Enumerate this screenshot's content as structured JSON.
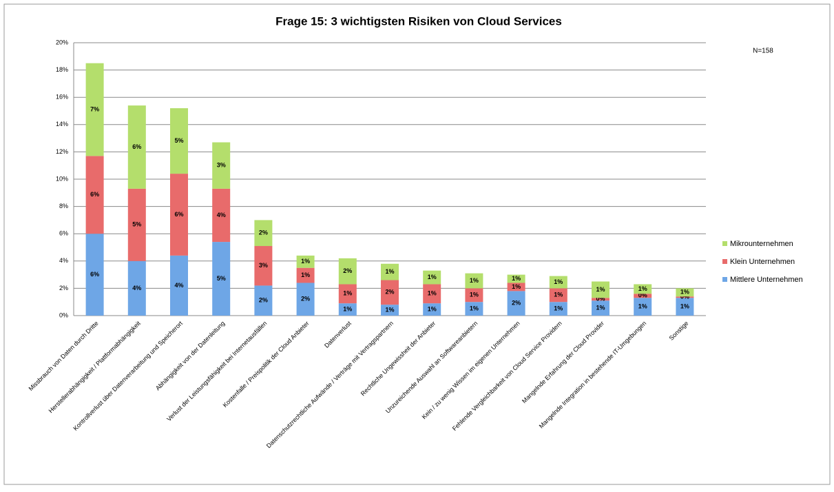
{
  "chart_data": {
    "type": "stacked_bar",
    "title": "Frage 15: 3 wichtigsten Risiken von Cloud Services",
    "annotation": "N=158",
    "categories": [
      "Missbrauch von Daten durch Dritte",
      "Herstellerabhängigkeit / Plattformabhängigkeit",
      "Kontrollverlust über Datenverarbeitung und Speicherort",
      "Abhängigkeit von der Datenleitung",
      "Verlust der Leistungsfähigkeit bei Internetausfällen",
      "Kostenfalle / Preispolitik der Cloud Anbieter",
      "Datenverlust",
      "Datenschutzrechtliche Aufwände / Verträge mit Vertragspartnern",
      "Rechtliche Ungewissheit der Anbieter",
      "Unzureichende Auswahl an Softwareanbietern",
      "Kein / zu wenig Wissen im eigenen Unternehmen",
      "Fehlende Vergleichbarkeit von Cloud Service Providern",
      "Mangelnde Erfahrung der Cloud Provider",
      "Mangelnde Integration in bestehende IT-Umgebungen",
      "Sonstige"
    ],
    "series": [
      {
        "name": "Mittlere Unternehmen",
        "color": "#6ea6e6",
        "values": [
          6.0,
          4.0,
          4.4,
          5.4,
          2.2,
          2.4,
          0.9,
          0.8,
          0.9,
          1.0,
          1.8,
          1.0,
          1.1,
          1.3,
          1.3
        ],
        "value_labels": [
          "6%",
          "4%",
          "4%",
          "5%",
          "2%",
          "2%",
          "1%",
          "1%",
          "1%",
          "1%",
          "2%",
          "1%",
          "1%",
          "1%",
          "1%"
        ]
      },
      {
        "name": "Klein Unternehmen",
        "color": "#e86b6b",
        "values": [
          5.7,
          5.3,
          6.0,
          3.9,
          2.9,
          1.1,
          1.4,
          1.8,
          1.4,
          1.0,
          0.6,
          1.0,
          0.2,
          0.3,
          0.1
        ],
        "value_labels": [
          "6%",
          "5%",
          "6%",
          "4%",
          "3%",
          "1%",
          "1%",
          "2%",
          "1%",
          "1%",
          "1%",
          "1%",
          "0%",
          "0%",
          "0%"
        ]
      },
      {
        "name": "Mikrounternehmen",
        "color": "#b4de6c",
        "values": [
          6.8,
          6.1,
          4.8,
          3.4,
          1.9,
          0.9,
          1.9,
          1.2,
          1.0,
          1.1,
          0.6,
          0.9,
          1.2,
          0.7,
          0.6
        ],
        "value_labels": [
          "7%",
          "6%",
          "5%",
          "3%",
          "2%",
          "1%",
          "2%",
          "1%",
          "1%",
          "1%",
          "1%",
          "1%",
          "1%",
          "1%",
          "1%"
        ]
      }
    ],
    "ylim": [
      0,
      20
    ],
    "yticks": [
      {
        "value": 0,
        "label": "0%"
      },
      {
        "value": 2,
        "label": "2%"
      },
      {
        "value": 4,
        "label": "4%"
      },
      {
        "value": 6,
        "label": "6%"
      },
      {
        "value": 8,
        "label": "8%"
      },
      {
        "value": 10,
        "label": "10%"
      },
      {
        "value": 12,
        "label": "12%"
      },
      {
        "value": 14,
        "label": "14%"
      },
      {
        "value": 16,
        "label": "16%"
      },
      {
        "value": 18,
        "label": "18%"
      },
      {
        "value": 20,
        "label": "20%"
      }
    ],
    "grid": true,
    "legend": "right"
  }
}
